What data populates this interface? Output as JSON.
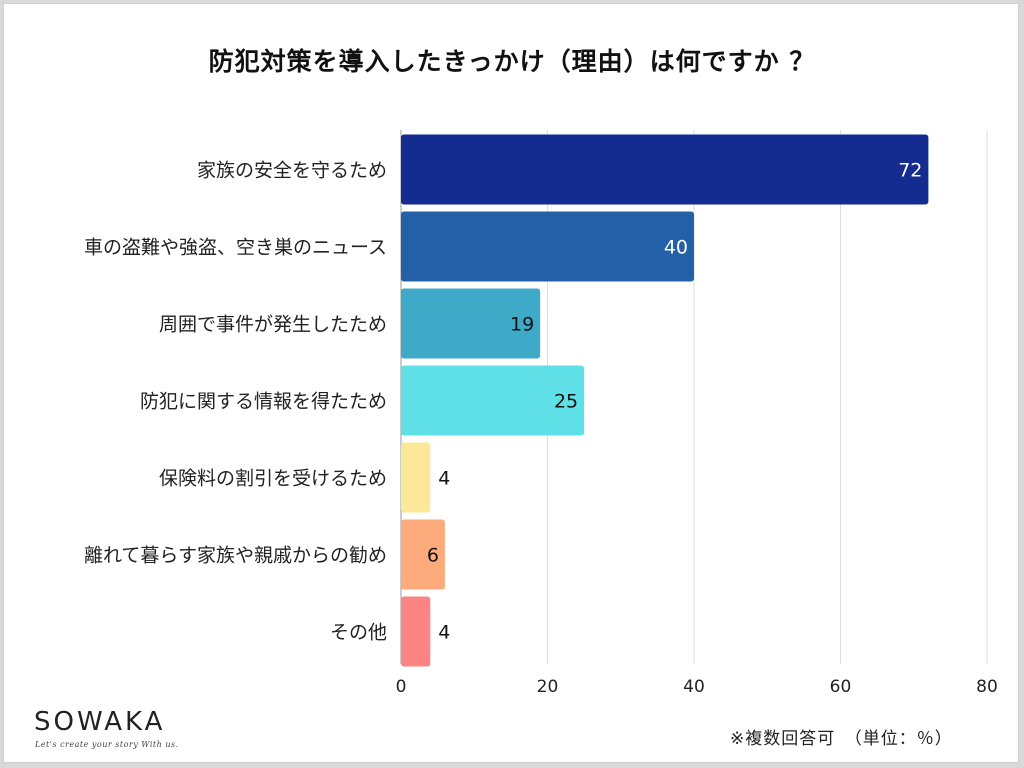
{
  "chart_data": {
    "type": "bar",
    "orientation": "horizontal",
    "title": "防犯対策を導入したきっかけ（理由）は何ですか ？",
    "categories": [
      "家族の安全を守るため",
      "車の盗難や強盗、空き巣のニュース",
      "周囲で事件が発生したため",
      "防犯に関する情報を得たため",
      "保険料の割引を受けるため",
      "離れて暮らす家族や親戚からの勧め",
      "その他"
    ],
    "values": [
      72,
      40,
      19,
      25,
      4,
      6,
      4
    ],
    "colors": [
      "#142b8f",
      "#2460a7",
      "#3fa9c8",
      "#5ee0e6",
      "#fde89a",
      "#fdab7c",
      "#fd8484"
    ],
    "label_colors": [
      "#ffffff",
      "#ffffff",
      "#111111",
      "#111111",
      "#111111",
      "#111111",
      "#111111"
    ],
    "xlim": [
      0,
      80
    ],
    "xticks": [
      0,
      20,
      40,
      60,
      80
    ],
    "grid": true,
    "xlabel": "",
    "ylabel": ""
  },
  "brand": {
    "logo": "SOWAKA",
    "tagline": "Let's create your story With us."
  },
  "note": "※複数回答可　（単位：％）"
}
